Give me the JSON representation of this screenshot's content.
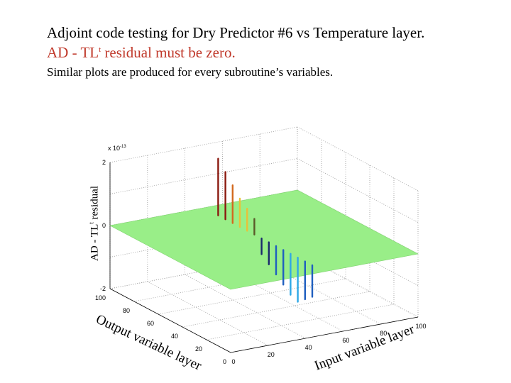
{
  "header": {
    "title": "Adjoint code testing for Dry Predictor #6 vs Temperature layer.",
    "subtitle_pre": "AD - TL",
    "subtitle_sup": "t",
    "subtitle_post": " residual must be zero.",
    "note": "Similar plots are produced for every subroutine’s variables."
  },
  "colors": {
    "title": "#000000",
    "subtitle": "#c0392b",
    "surface": "#99ee88",
    "grid": "#999999"
  },
  "chart_data": {
    "type": "surface",
    "title": "",
    "zlabel_pre": "AD - TL",
    "zlabel_sup": "t",
    "zlabel_post": " residual",
    "xlabel": "Output variable layer",
    "ylabel": "Input variable layer",
    "z_multiplier": "x 10",
    "z_multiplier_exp": "-13",
    "xlim": [
      0,
      100
    ],
    "ylim": [
      0,
      100
    ],
    "zlim": [
      -2,
      2
    ],
    "x_ticks": [
      "0",
      "20",
      "40",
      "60",
      "80",
      "100"
    ],
    "y_ticks": [
      "0",
      "20",
      "40",
      "60",
      "80",
      "100"
    ],
    "z_ticks": [
      "-2",
      "0",
      "2"
    ],
    "grid": true,
    "surface_value": 0,
    "spikes": [
      {
        "x": 88,
        "y": 50,
        "z": 1.8
      },
      {
        "x": 82,
        "y": 50,
        "z": 1.5
      },
      {
        "x": 76,
        "y": 50,
        "z": 1.2
      },
      {
        "x": 70,
        "y": 50,
        "z": 0.9
      },
      {
        "x": 64,
        "y": 50,
        "z": 0.7
      },
      {
        "x": 58,
        "y": 50,
        "z": 0.5
      },
      {
        "x": 52,
        "y": 50,
        "z": -0.5
      },
      {
        "x": 46,
        "y": 50,
        "z": -0.7
      },
      {
        "x": 40,
        "y": 50,
        "z": -0.9
      },
      {
        "x": 34,
        "y": 50,
        "z": -1.1
      },
      {
        "x": 28,
        "y": 50,
        "z": -1.3
      },
      {
        "x": 22,
        "y": 50,
        "z": -1.4
      },
      {
        "x": 16,
        "y": 50,
        "z": -1.2
      },
      {
        "x": 10,
        "y": 50,
        "z": -1.0
      }
    ]
  }
}
